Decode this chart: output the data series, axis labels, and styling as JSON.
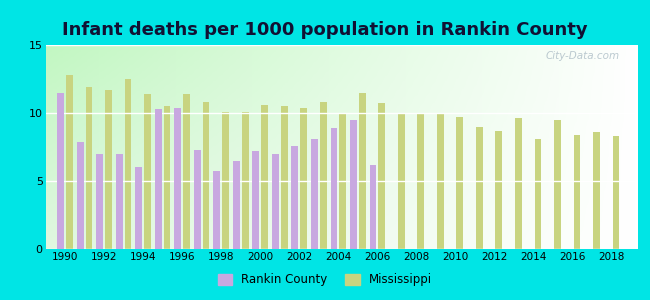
{
  "title": "Infant deaths per 1000 population in Rankin County",
  "years": [
    1990,
    1991,
    1992,
    1993,
    1994,
    1995,
    1996,
    1997,
    1998,
    1999,
    2000,
    2001,
    2002,
    2003,
    2004,
    2005,
    2006,
    2007,
    2008,
    2009,
    2010,
    2011,
    2012,
    2013,
    2014,
    2015,
    2016,
    2017,
    2018
  ],
  "rankin": [
    11.5,
    7.9,
    7.0,
    7.0,
    6.0,
    10.3,
    10.4,
    7.3,
    5.7,
    6.5,
    7.2,
    7.0,
    7.6,
    8.1,
    8.9,
    9.5,
    6.2,
    null,
    null,
    null,
    null,
    null,
    null,
    null,
    null,
    null,
    null,
    null,
    null
  ],
  "mississippi": [
    12.8,
    11.9,
    11.7,
    12.5,
    11.4,
    10.5,
    11.4,
    10.8,
    10.1,
    10.1,
    10.6,
    10.5,
    10.4,
    10.8,
    9.9,
    11.5,
    10.7,
    10.0,
    10.0,
    10.0,
    9.7,
    9.0,
    8.7,
    9.6,
    8.1,
    9.5,
    8.4,
    8.6,
    8.3
  ],
  "rankin_color": "#c8a8e0",
  "ms_color": "#c8d480",
  "outer_bg": "#00e5e5",
  "ylim": [
    0,
    15
  ],
  "yticks": [
    0,
    5,
    10,
    15
  ],
  "title_fontsize": 13,
  "title_color": "#111133",
  "bar_width": 0.35,
  "xlim_left": 1989.0,
  "xlim_right": 2019.3
}
